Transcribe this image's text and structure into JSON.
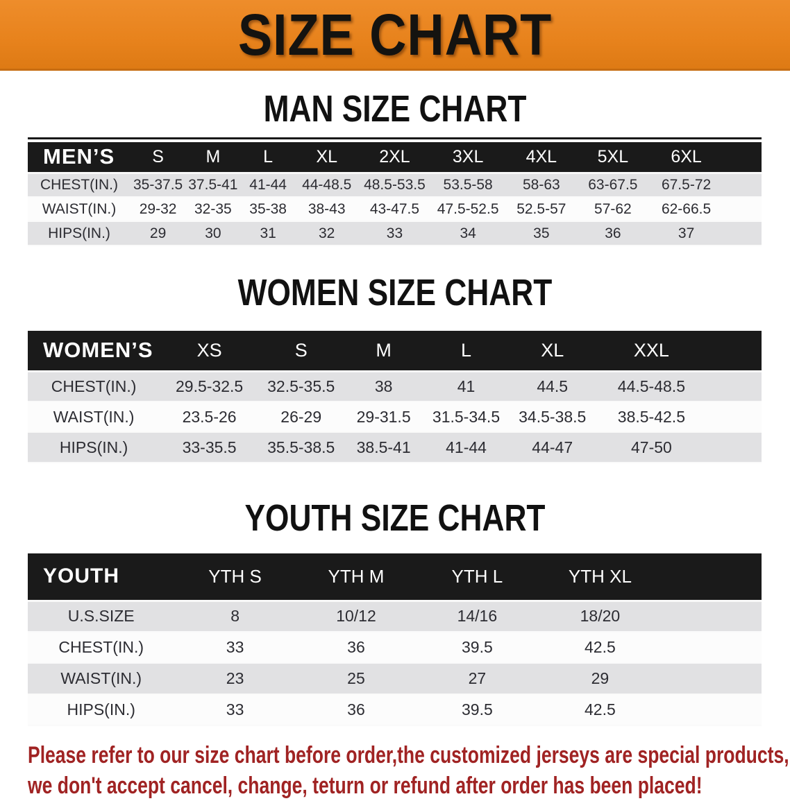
{
  "banner": {
    "title": "SIZE CHART"
  },
  "colors": {
    "banner_orange": "#e8831d",
    "banner_border": "#c76d12",
    "header_black": "#1a1a1a",
    "row_gray": "#e1e1e3",
    "row_white": "#fcfcfc",
    "note_red": "#a02323",
    "heading_black": "#111111"
  },
  "tables": {
    "men": {
      "heading": "MAN SIZE CHART",
      "label": "MEN’S",
      "columns": [
        "S",
        "M",
        "L",
        "XL",
        "2XL",
        "3XL",
        "4XL",
        "5XL",
        "6XL"
      ],
      "rows": [
        {
          "label": "CHEST(IN.)",
          "values": [
            "35-37.5",
            "37.5-41",
            "41-44",
            "44-48.5",
            "48.5-53.5",
            "53.5-58",
            "58-63",
            "63-67.5",
            "67.5-72"
          ]
        },
        {
          "label": "WAIST(IN.)",
          "values": [
            "29-32",
            "32-35",
            "35-38",
            "38-43",
            "43-47.5",
            "47.5-52.5",
            "52.5-57",
            "57-62",
            "62-66.5"
          ]
        },
        {
          "label": "HIPS(IN.)",
          "values": [
            "29",
            "30",
            "31",
            "32",
            "33",
            "34",
            "35",
            "36",
            "37"
          ]
        }
      ]
    },
    "women": {
      "heading": "WOMEN SIZE CHART",
      "label": "WOMEN’S",
      "columns": [
        "XS",
        "S",
        "M",
        "L",
        "XL",
        "XXL"
      ],
      "rows": [
        {
          "label": "CHEST(IN.)",
          "values": [
            "29.5-32.5",
            "32.5-35.5",
            "38",
            "41",
            "44.5",
            "44.5-48.5"
          ]
        },
        {
          "label": "WAIST(IN.)",
          "values": [
            "23.5-26",
            "26-29",
            "29-31.5",
            "31.5-34.5",
            "34.5-38.5",
            "38.5-42.5"
          ]
        },
        {
          "label": "HIPS(IN.)",
          "values": [
            "33-35.5",
            "35.5-38.5",
            "38.5-41",
            "41-44",
            "44-47",
            "47-50"
          ]
        }
      ]
    },
    "youth": {
      "heading": "YOUTH SIZE CHART",
      "label": "YOUTH",
      "columns": [
        "YTH S",
        "YTH M",
        "YTH L",
        "YTH XL"
      ],
      "rows": [
        {
          "label": "U.S.SIZE",
          "values": [
            "8",
            "10/12",
            "14/16",
            "18/20"
          ]
        },
        {
          "label": "CHEST(IN.)",
          "values": [
            "33",
            "36",
            "39.5",
            "42.5"
          ]
        },
        {
          "label": "WAIST(IN.)",
          "values": [
            "23",
            "25",
            "27",
            "29"
          ]
        },
        {
          "label": "HIPS(IN.)",
          "values": [
            "33",
            "36",
            "39.5",
            "42.5"
          ]
        }
      ]
    }
  },
  "note": {
    "line1": "Please refer to our size chart before order,the customized jerseys are special products,",
    "line2": "we don't accept cancel, change, teturn or refund after order has been placed!"
  }
}
